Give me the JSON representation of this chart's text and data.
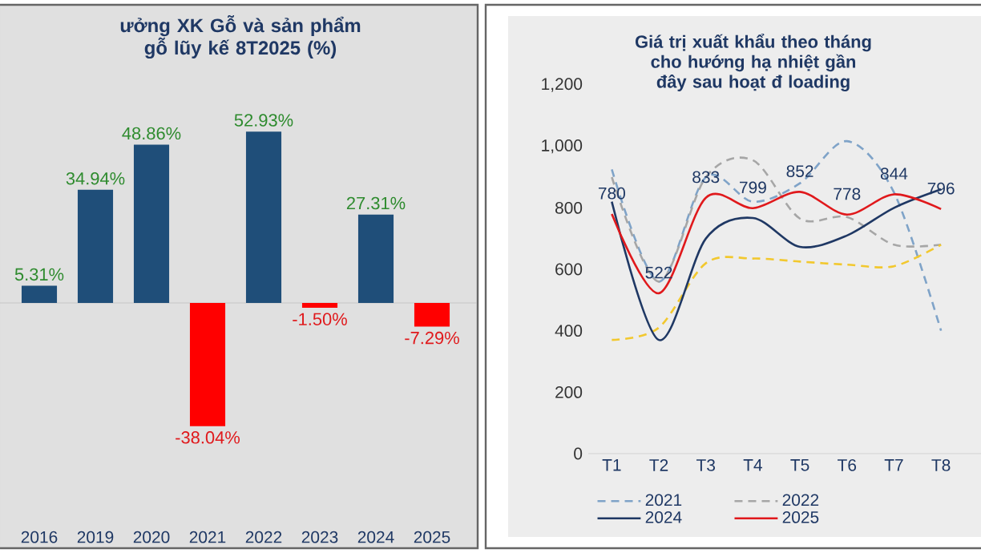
{
  "chart_data": [
    {
      "type": "bar",
      "title": "ưởng XK Gỗ và sản phẩm gỗ lũy kế 8T2025 (%)",
      "categories": [
        "2016",
        "2019",
        "2020",
        "2021",
        "2022",
        "2023",
        "2024",
        "2025"
      ],
      "values": [
        5.31,
        34.94,
        48.86,
        -38.04,
        52.93,
        -1.5,
        27.31,
        -7.29
      ],
      "colors": [
        "#1f4e79",
        "#1f4e79",
        "#1f4e79",
        "#ff0000",
        "#1f4e79",
        "#ff0000",
        "#1f4e79",
        "#ff0000"
      ],
      "value_labels": [
        "5.31%",
        "34.94%",
        "48.86%",
        "-38.04%",
        "52.93%",
        "-1.50%",
        "27.31%",
        "-7.29%"
      ]
    },
    {
      "type": "line",
      "title": "Giá trị xuất khẩu theo tháng cho hướng hạ nhiệt gần đây sau hoạt đ loading",
      "categories": [
        "T1",
        "T2",
        "T3",
        "T4",
        "T5",
        "T6",
        "T7",
        "T8"
      ],
      "series": [
        {
          "name": "2021",
          "color": "#7fa3c8",
          "line_style": "dashed",
          "values": [
            925,
            560,
            900,
            820,
            880,
            1017,
            850,
            400
          ]
        },
        {
          "name": "2022",
          "color": "#a6a6a6",
          "line_style": "dashed",
          "values": [
            900,
            560,
            900,
            955,
            765,
            770,
            680,
            680
          ]
        },
        {
          "color": "#f2c82e",
          "line_style": "dashed",
          "values": [
            370,
            410,
            620,
            635,
            625,
            615,
            610,
            680
          ]
        },
        {
          "name": "2024",
          "color": "#1f3864",
          "line_style": "solid",
          "values": [
            820,
            370,
            700,
            767,
            673,
            710,
            800,
            860
          ]
        },
        {
          "name": "2025",
          "color": "#e0191c",
          "line_style": "solid",
          "values": [
            780,
            522,
            833,
            799,
            852,
            778,
            844,
            796
          ],
          "value_labels": [
            "780",
            "522",
            "833",
            "799",
            "852",
            "778",
            "844",
            "796"
          ]
        }
      ],
      "ylim": [
        0,
        1200
      ],
      "yticks": [
        0,
        200,
        400,
        600,
        800,
        {
          "value": 1000,
          "label": "1,000"
        },
        {
          "value": 1200,
          "label": "1,200"
        }
      ],
      "marker": "none",
      "legend": "bottom"
    }
  ]
}
